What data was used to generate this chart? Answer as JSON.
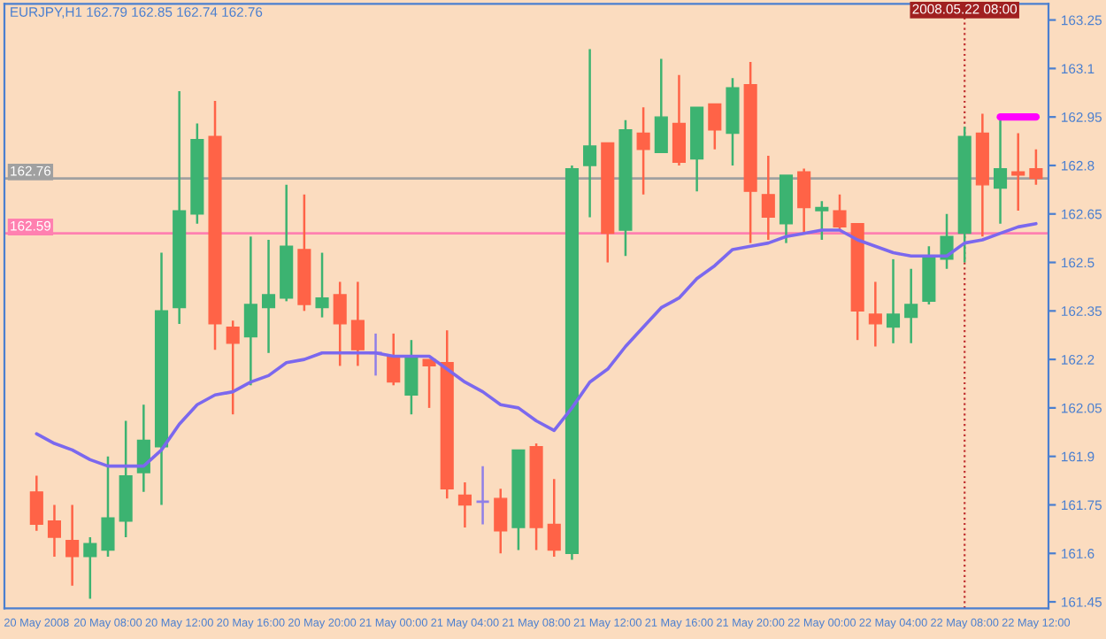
{
  "chart_data": {
    "type": "candlestick",
    "title": "EURJPY,H1 162.79 162.85 162.74 162.76",
    "categories": [
      "20 May 2008",
      null,
      null,
      null,
      "20 May 08:00",
      null,
      null,
      null,
      "20 May 12:00",
      null,
      null,
      null,
      "20 May 16:00",
      null,
      null,
      null,
      "20 May 20:00",
      null,
      null,
      null,
      "21 May 00:00",
      null,
      null,
      null,
      "21 May 04:00",
      null,
      null,
      null,
      "21 May 08:00",
      null,
      null,
      null,
      "21 May 12:00",
      null,
      null,
      null,
      "21 May 16:00",
      null,
      null,
      null,
      "21 May 20:00",
      null,
      null,
      null,
      "22 May 00:00",
      null,
      null,
      null,
      "22 May 04:00",
      null,
      null,
      null,
      "22 May 08:00",
      null,
      null,
      null,
      "22 May 12:00"
    ],
    "ohlc": [
      [
        161.79,
        161.84,
        161.67,
        161.69
      ],
      [
        161.7,
        161.75,
        161.59,
        161.65
      ],
      [
        161.64,
        161.75,
        161.5,
        161.59
      ],
      [
        161.59,
        161.65,
        161.46,
        161.63
      ],
      [
        161.61,
        161.9,
        161.59,
        161.71
      ],
      [
        161.7,
        162.01,
        161.65,
        161.84
      ],
      [
        161.85,
        162.06,
        161.79,
        161.95
      ],
      [
        161.93,
        162.53,
        161.75,
        162.35
      ],
      [
        162.36,
        163.03,
        162.31,
        162.66
      ],
      [
        162.65,
        162.93,
        162.62,
        162.88
      ],
      [
        162.89,
        163.0,
        162.23,
        162.31
      ],
      [
        162.3,
        162.32,
        162.03,
        162.25
      ],
      [
        162.27,
        162.58,
        162.12,
        162.37
      ],
      [
        162.36,
        162.57,
        162.22,
        162.4
      ],
      [
        162.39,
        162.74,
        162.38,
        162.55
      ],
      [
        162.54,
        162.71,
        162.35,
        162.37
      ],
      [
        162.36,
        162.53,
        162.33,
        162.39
      ],
      [
        162.4,
        162.44,
        162.18,
        162.31
      ],
      [
        162.32,
        162.44,
        162.18,
        162.23
      ],
      [
        162.22,
        162.28,
        162.15,
        162.22
      ],
      [
        162.21,
        162.28,
        162.12,
        162.13
      ],
      [
        162.09,
        162.26,
        162.03,
        162.21
      ],
      [
        162.2,
        162.2,
        162.05,
        162.18
      ],
      [
        162.19,
        162.29,
        161.77,
        161.8
      ],
      [
        161.78,
        161.82,
        161.68,
        161.75
      ],
      [
        161.76,
        161.87,
        161.69,
        161.76
      ],
      [
        161.77,
        161.8,
        161.6,
        161.67
      ],
      [
        161.68,
        161.92,
        161.61,
        161.92
      ],
      [
        161.93,
        161.94,
        161.61,
        161.68
      ],
      [
        161.69,
        161.83,
        161.59,
        161.61
      ],
      [
        161.6,
        162.8,
        161.58,
        162.79
      ],
      [
        162.8,
        163.16,
        162.64,
        162.86
      ],
      [
        162.87,
        162.87,
        162.5,
        162.59
      ],
      [
        162.6,
        162.94,
        162.52,
        162.91
      ],
      [
        162.9,
        162.98,
        162.71,
        162.85
      ],
      [
        162.84,
        163.13,
        162.84,
        162.95
      ],
      [
        162.93,
        163.08,
        162.8,
        162.81
      ],
      [
        162.82,
        162.98,
        162.72,
        162.98
      ],
      [
        162.99,
        162.99,
        162.85,
        162.91
      ],
      [
        162.9,
        163.07,
        162.8,
        163.04
      ],
      [
        163.05,
        163.12,
        162.56,
        162.72
      ],
      [
        162.71,
        162.83,
        162.57,
        162.64
      ],
      [
        162.62,
        162.77,
        162.56,
        162.77
      ],
      [
        162.78,
        162.79,
        162.59,
        162.67
      ],
      [
        162.66,
        162.69,
        162.57,
        162.67
      ],
      [
        162.66,
        162.71,
        162.6,
        162.61
      ],
      [
        162.62,
        162.62,
        162.26,
        162.35
      ],
      [
        162.34,
        162.44,
        162.24,
        162.31
      ],
      [
        162.3,
        162.51,
        162.25,
        162.34
      ],
      [
        162.33,
        162.48,
        162.25,
        162.37
      ],
      [
        162.38,
        162.55,
        162.37,
        162.52
      ],
      [
        162.51,
        162.65,
        162.48,
        162.58
      ],
      [
        162.59,
        162.92,
        162.5,
        162.89
      ],
      [
        162.9,
        162.96,
        162.58,
        162.74
      ],
      [
        162.73,
        162.95,
        162.62,
        162.79
      ],
      [
        162.78,
        162.9,
        162.66,
        162.77
      ],
      [
        162.79,
        162.85,
        162.74,
        162.76
      ]
    ],
    "colors": [
      "#ff6347",
      "#ff6347",
      "#ff6347",
      "#3cb371",
      "#3cb371",
      "#3cb371",
      "#3cb371",
      "#3cb371",
      "#3cb371",
      "#3cb371",
      "#ff6347",
      "#ff6347",
      "#3cb371",
      "#3cb371",
      "#3cb371",
      "#ff6347",
      "#3cb371",
      "#ff6347",
      "#ff6347",
      "#8f7fe8",
      "#ff6347",
      "#3cb371",
      "#ff6347",
      "#ff6347",
      "#ff6347",
      "#8f7fe8",
      "#ff6347",
      "#3cb371",
      "#ff6347",
      "#ff6347",
      "#3cb371",
      "#3cb371",
      "#ff6347",
      "#3cb371",
      "#ff6347",
      "#3cb371",
      "#ff6347",
      "#3cb371",
      "#ff6347",
      "#3cb371",
      "#ff6347",
      "#ff6347",
      "#3cb371",
      "#ff6347",
      "#3cb371",
      "#ff6347",
      "#ff6347",
      "#ff6347",
      "#3cb371",
      "#3cb371",
      "#3cb371",
      "#3cb371",
      "#3cb371",
      "#ff6347",
      "#3cb371",
      "#ff6347",
      "#ff6347"
    ],
    "series": [
      {
        "type": "line",
        "color": "#7b68ee",
        "values": [
          161.97,
          161.94,
          161.92,
          161.89,
          161.87,
          161.87,
          161.87,
          161.92,
          162.0,
          162.06,
          162.09,
          162.1,
          162.13,
          162.15,
          162.19,
          162.2,
          162.22,
          162.22,
          162.22,
          162.22,
          162.21,
          162.21,
          162.21,
          162.17,
          162.13,
          162.1,
          162.06,
          162.05,
          162.01,
          161.98,
          162.05,
          162.13,
          162.17,
          162.24,
          162.3,
          162.36,
          162.39,
          162.45,
          162.49,
          162.54,
          162.55,
          162.56,
          162.58,
          162.59,
          162.6,
          162.6,
          162.57,
          162.55,
          162.53,
          162.52,
          162.52,
          162.52,
          162.56,
          162.57,
          162.59,
          162.61,
          162.62
        ]
      },
      {
        "type": "line",
        "color": "#ff00ff",
        "values": [
          null,
          null,
          null,
          null,
          null,
          null,
          null,
          null,
          null,
          null,
          null,
          null,
          null,
          null,
          null,
          null,
          null,
          null,
          null,
          null,
          null,
          null,
          null,
          null,
          null,
          null,
          null,
          null,
          null,
          null,
          null,
          null,
          null,
          null,
          null,
          null,
          null,
          null,
          null,
          null,
          null,
          null,
          null,
          null,
          null,
          null,
          null,
          null,
          null,
          null,
          null,
          null,
          null,
          null,
          162.95,
          162.95,
          162.95
        ]
      }
    ],
    "ylim": [
      161.43,
      163.3
    ],
    "yticks": [
      161.45,
      161.6,
      161.75,
      161.9,
      162.05,
      162.2,
      162.35,
      162.5,
      162.65,
      162.8,
      162.95,
      163.1,
      163.25
    ],
    "ref_lines": [
      {
        "axis": "y",
        "value": 162.76,
        "label": "162.76",
        "color": "#a0a0a0",
        "line_style": "solid"
      },
      {
        "axis": "y",
        "value": 162.59,
        "label": "162.59",
        "color": "#ff80b0",
        "line_style": "solid"
      },
      {
        "axis": "x",
        "value": "22 May 08:00",
        "label": "2008.05.22 08:00",
        "color": "#c03030",
        "line_style": "dotted"
      }
    ],
    "grid": false,
    "legend": false
  }
}
